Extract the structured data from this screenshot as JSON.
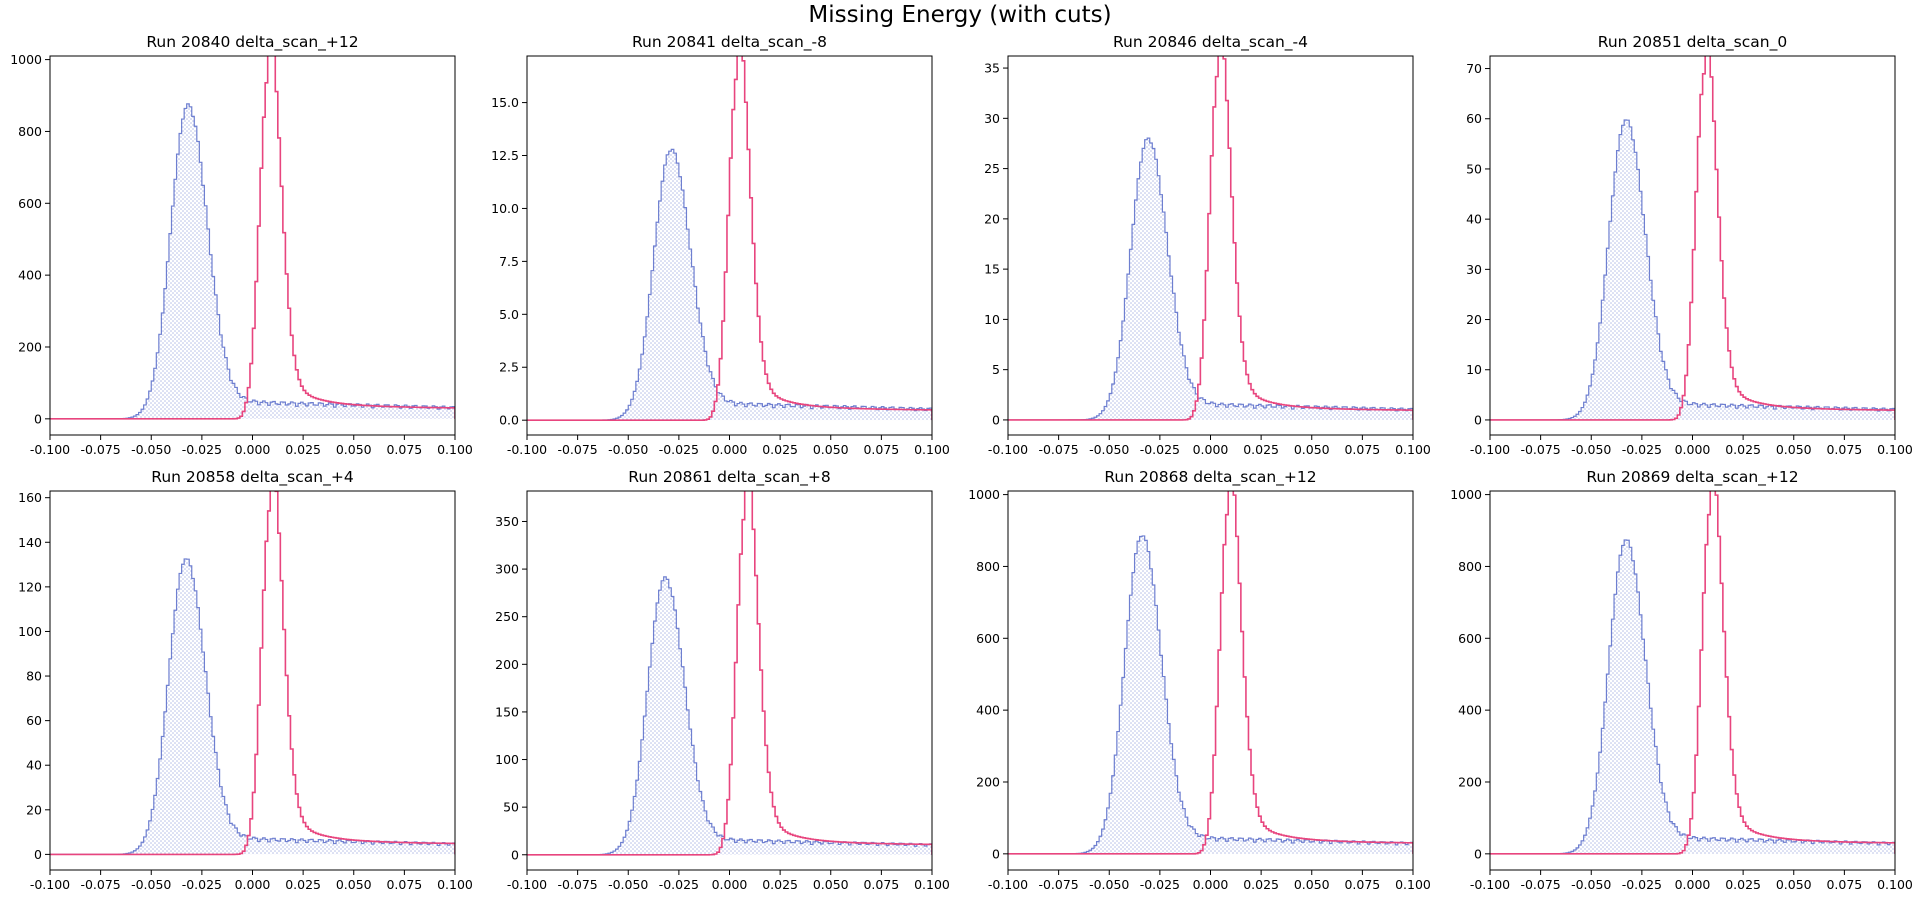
{
  "figure": {
    "title": "Missing Energy (with cuts)"
  },
  "colors": {
    "blue_series": "#6e7fd0",
    "blue_fill": "#d6dcf5",
    "pink_series": "#e8457e"
  },
  "chart_data": [
    {
      "type": "histogram",
      "title": "Run 20840 delta_scan_+12",
      "xlim": [
        -0.1,
        0.1
      ],
      "ylim": [
        -45,
        1010
      ],
      "yticks": [
        0,
        200,
        400,
        600,
        800,
        1000
      ],
      "ytick_labels": [
        "0",
        "200",
        "400",
        "600",
        "800",
        "1000"
      ],
      "xticks": [
        -0.1,
        -0.075,
        -0.05,
        -0.025,
        0,
        0.025,
        0.05,
        0.075,
        0.1
      ],
      "xtick_labels": [
        "-0.100",
        "-0.075",
        "-0.050",
        "-0.025",
        "0.000",
        "0.025",
        "0.050",
        "0.075",
        "0.100"
      ],
      "blue_peak": {
        "center": -0.032,
        "value": 850
      },
      "pink_peak": {
        "center": 0.008,
        "value": 965
      },
      "blue_tail": 30,
      "pink_tail_end": 28
    },
    {
      "type": "histogram",
      "title": "Run 20841 delta_scan_-8",
      "xlim": [
        -0.1,
        0.1
      ],
      "ylim": [
        -0.7,
        17.2
      ],
      "yticks": [
        0,
        2.5,
        5,
        7.5,
        10,
        12.5,
        15
      ],
      "ytick_labels": [
        "0.0",
        "2.5",
        "5.0",
        "7.5",
        "10.0",
        "12.5",
        "15.0"
      ],
      "xticks": [
        -0.1,
        -0.075,
        -0.05,
        -0.025,
        0,
        0.025,
        0.05,
        0.075,
        0.1
      ],
      "xtick_labels": [
        "-0.100",
        "-0.075",
        "-0.050",
        "-0.025",
        "0.000",
        "0.025",
        "0.050",
        "0.075",
        "0.100"
      ],
      "blue_peak": {
        "center": -0.029,
        "value": 12.4
      },
      "pink_peak": {
        "center": 0.004,
        "value": 16.4
      },
      "blue_tail": 0.5,
      "pink_tail_end": 0.45
    },
    {
      "type": "histogram",
      "title": "Run 20846 delta_scan_-4",
      "xlim": [
        -0.1,
        0.1
      ],
      "ylim": [
        -1.5,
        36.2
      ],
      "yticks": [
        0,
        5,
        10,
        15,
        20,
        25,
        30,
        35
      ],
      "ytick_labels": [
        "0",
        "5",
        "10",
        "15",
        "20",
        "25",
        "30",
        "35"
      ],
      "xticks": [
        -0.1,
        -0.075,
        -0.05,
        -0.025,
        0,
        0.025,
        0.05,
        0.075,
        0.1
      ],
      "xtick_labels": [
        "-0.100",
        "-0.075",
        "-0.050",
        "-0.025",
        "0.000",
        "0.025",
        "0.050",
        "0.075",
        "0.100"
      ],
      "blue_peak": {
        "center": -0.031,
        "value": 27.2
      },
      "pink_peak": {
        "center": 0.004,
        "value": 34.8
      },
      "blue_tail": 1.0,
      "pink_tail_end": 0.9
    },
    {
      "type": "histogram",
      "title": "Run 20851 delta_scan_0",
      "xlim": [
        -0.1,
        0.1
      ],
      "ylim": [
        -3,
        72.5
      ],
      "yticks": [
        0,
        10,
        20,
        30,
        40,
        50,
        60,
        70
      ],
      "ytick_labels": [
        "0",
        "10",
        "20",
        "30",
        "40",
        "50",
        "60",
        "70"
      ],
      "xticks": [
        -0.1,
        -0.075,
        -0.05,
        -0.025,
        0,
        0.025,
        0.05,
        0.075,
        0.1
      ],
      "xtick_labels": [
        "-0.100",
        "-0.075",
        "-0.050",
        "-0.025",
        "0.000",
        "0.025",
        "0.050",
        "0.075",
        "0.100"
      ],
      "blue_peak": {
        "center": -0.033,
        "value": 58.2
      },
      "pink_peak": {
        "center": 0.006,
        "value": 69.2
      },
      "blue_tail": 2.0,
      "pink_tail_end": 1.8
    },
    {
      "type": "histogram",
      "title": "Run 20858 delta_scan_+4",
      "xlim": [
        -0.1,
        0.1
      ],
      "ylim": [
        -7,
        163
      ],
      "yticks": [
        0,
        20,
        40,
        60,
        80,
        100,
        120,
        140,
        160
      ],
      "ytick_labels": [
        "0",
        "20",
        "40",
        "60",
        "80",
        "100",
        "120",
        "140",
        "160"
      ],
      "xticks": [
        -0.1,
        -0.075,
        -0.05,
        -0.025,
        0,
        0.025,
        0.05,
        0.075,
        0.1
      ],
      "xtick_labels": [
        "-0.100",
        "-0.075",
        "-0.050",
        "-0.025",
        "0.000",
        "0.025",
        "0.050",
        "0.075",
        "0.100"
      ],
      "blue_peak": {
        "center": -0.033,
        "value": 129
      },
      "pink_peak": {
        "center": 0.009,
        "value": 157
      },
      "blue_tail": 4.5,
      "pink_tail_end": 4.5
    },
    {
      "type": "histogram",
      "title": "Run 20861 delta_scan_+8",
      "xlim": [
        -0.1,
        0.1
      ],
      "ylim": [
        -16,
        382
      ],
      "yticks": [
        0,
        50,
        100,
        150,
        200,
        250,
        300,
        350
      ],
      "ytick_labels": [
        "0",
        "50",
        "100",
        "150",
        "200",
        "250",
        "300",
        "350"
      ],
      "xticks": [
        -0.1,
        -0.075,
        -0.05,
        -0.025,
        0,
        0.025,
        0.05,
        0.075,
        0.1
      ],
      "xtick_labels": [
        "-0.100",
        "-0.075",
        "-0.050",
        "-0.025",
        "0.000",
        "0.025",
        "0.050",
        "0.075",
        "0.100"
      ],
      "blue_peak": {
        "center": -0.032,
        "value": 283
      },
      "pink_peak": {
        "center": 0.008,
        "value": 363
      },
      "blue_tail": 10,
      "pink_tail_end": 10
    },
    {
      "type": "histogram",
      "title": "Run 20868 delta_scan_+12",
      "xlim": [
        -0.1,
        0.1
      ],
      "ylim": [
        -45,
        1010
      ],
      "yticks": [
        0,
        200,
        400,
        600,
        800,
        1000
      ],
      "ytick_labels": [
        "0",
        "200",
        "400",
        "600",
        "800",
        "1000"
      ],
      "xticks": [
        -0.1,
        -0.075,
        -0.05,
        -0.025,
        0,
        0.025,
        0.05,
        0.075,
        0.1
      ],
      "xtick_labels": [
        "-0.100",
        "-0.075",
        "-0.050",
        "-0.025",
        "0.000",
        "0.025",
        "0.050",
        "0.075",
        "0.100"
      ],
      "blue_peak": {
        "center": -0.034,
        "value": 865
      },
      "pink_peak": {
        "center": 0.009,
        "value": 962
      },
      "blue_tail": 28,
      "pink_tail_end": 28
    },
    {
      "type": "histogram",
      "title": "Run 20869 delta_scan_+12",
      "xlim": [
        -0.1,
        0.1
      ],
      "ylim": [
        -45,
        1010
      ],
      "yticks": [
        0,
        200,
        400,
        600,
        800,
        1000
      ],
      "ytick_labels": [
        "0",
        "200",
        "400",
        "600",
        "800",
        "1000"
      ],
      "xticks": [
        -0.1,
        -0.075,
        -0.05,
        -0.025,
        0,
        0.025,
        0.05,
        0.075,
        0.1
      ],
      "xtick_labels": [
        "-0.100",
        "-0.075",
        "-0.050",
        "-0.025",
        "0.000",
        "0.025",
        "0.050",
        "0.075",
        "0.100"
      ],
      "blue_peak": {
        "center": -0.033,
        "value": 852
      },
      "pink_peak": {
        "center": 0.009,
        "value": 962
      },
      "blue_tail": 28,
      "pink_tail_end": 28
    }
  ]
}
